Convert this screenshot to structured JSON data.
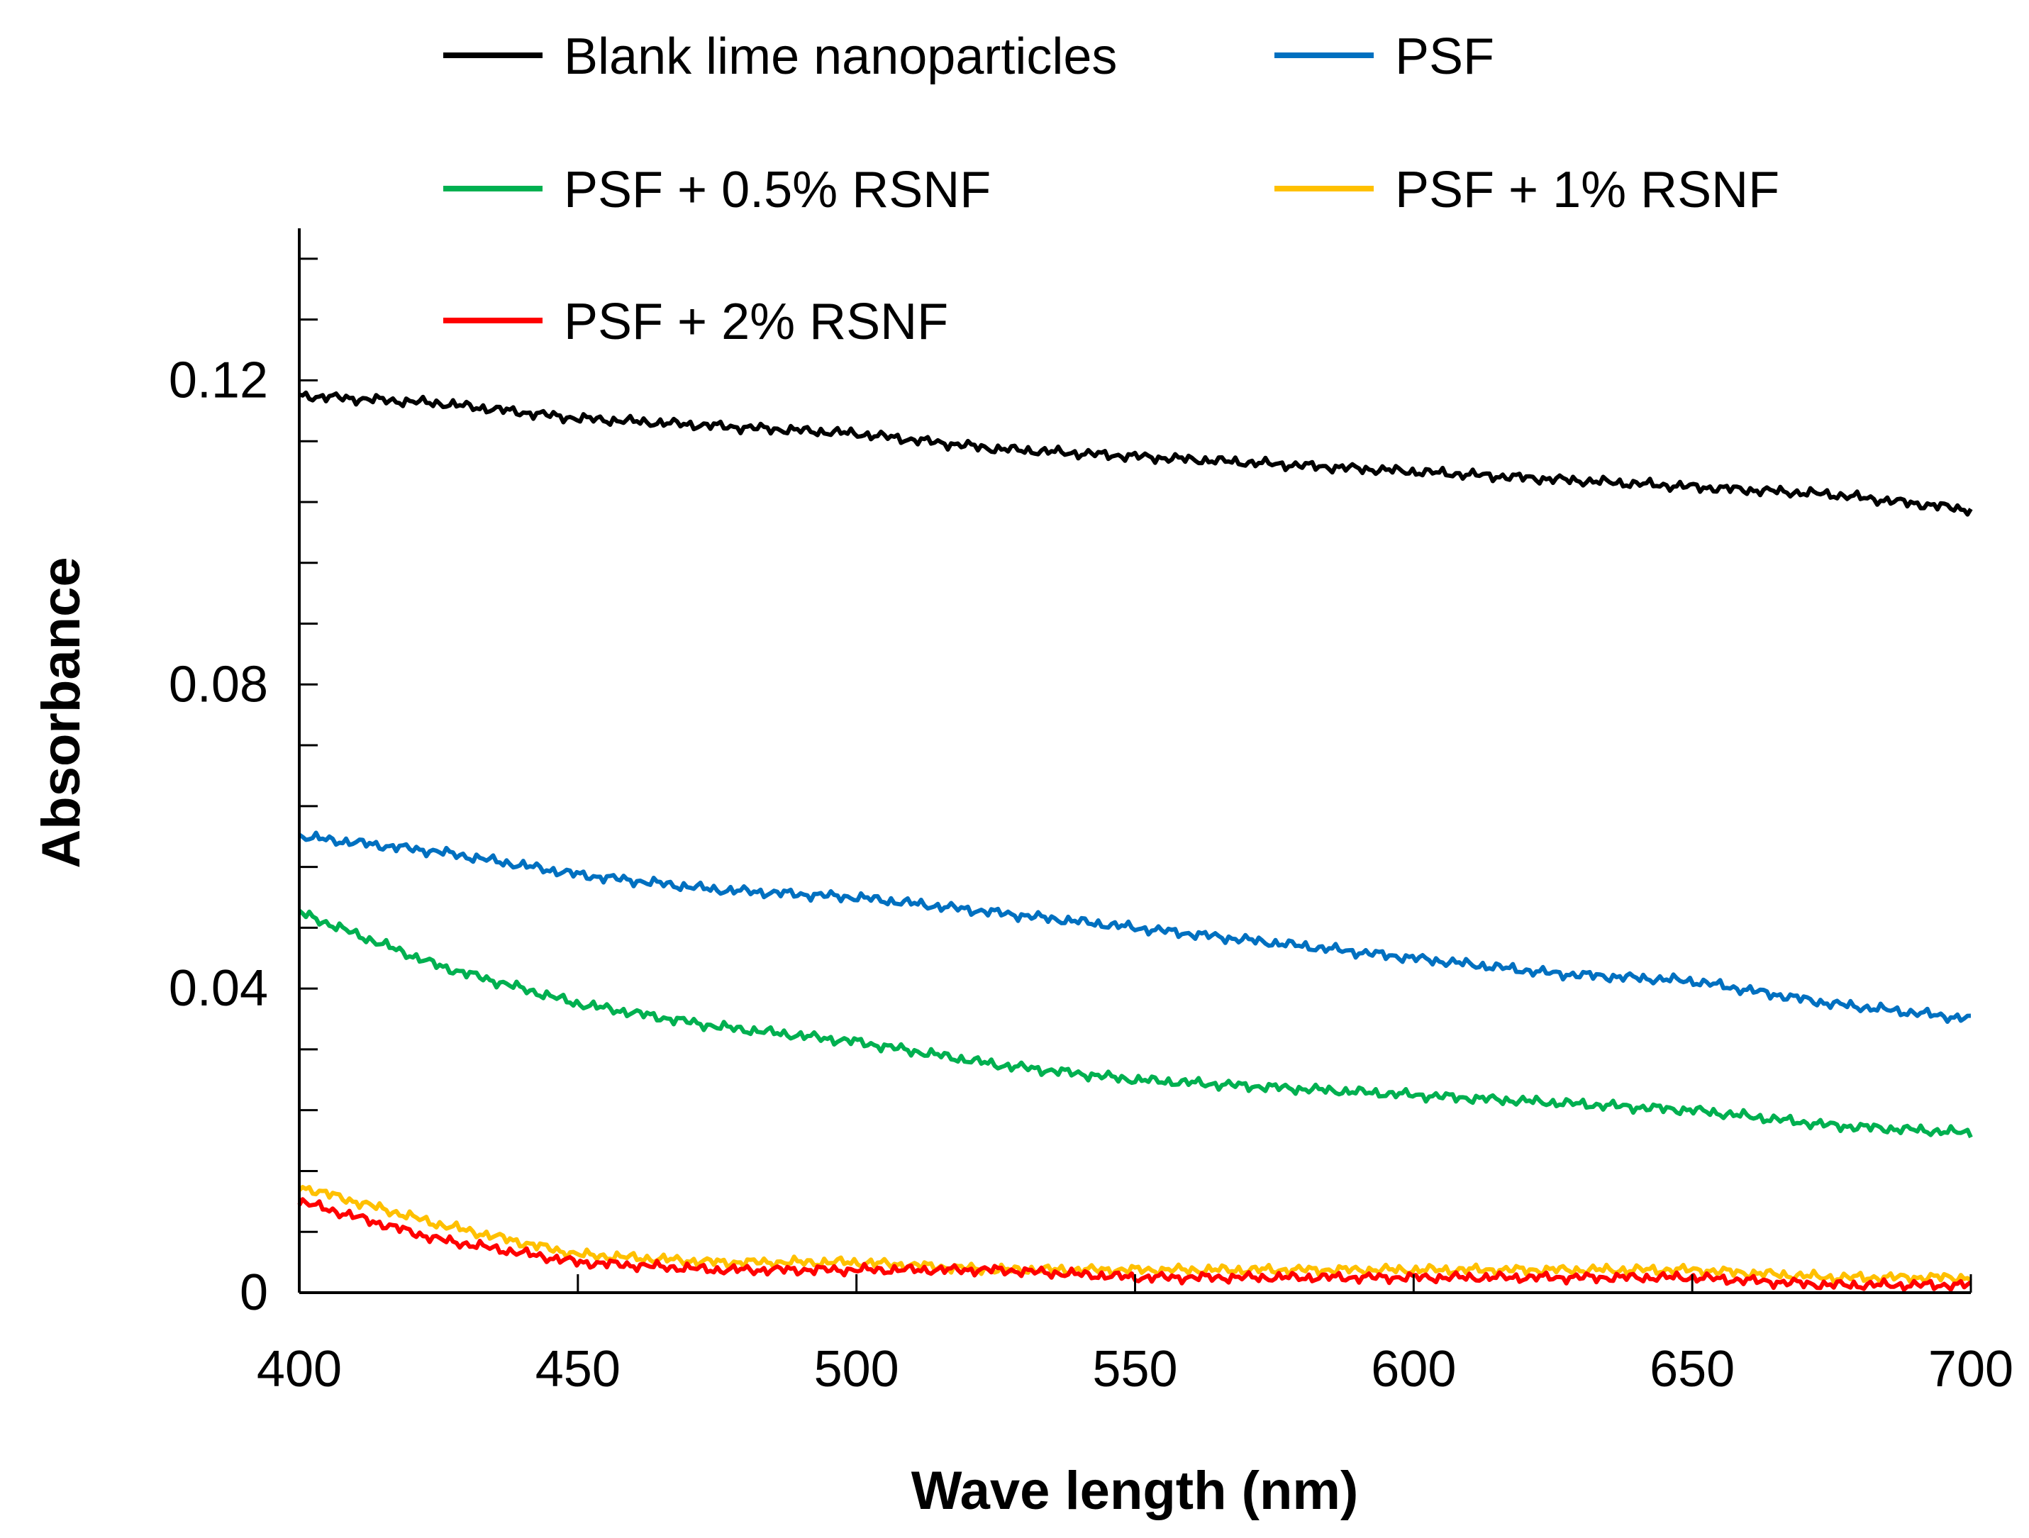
{
  "chart_data": {
    "type": "line",
    "title": "",
    "xlabel": "Wave length (nm)",
    "ylabel": "Absorbance",
    "xlim": [
      400,
      700
    ],
    "ylim": [
      0,
      0.14
    ],
    "x_ticks": [
      400,
      450,
      500,
      550,
      600,
      650,
      700
    ],
    "x_tick_labels": [
      "400",
      "450",
      "500",
      "550",
      "600",
      "650",
      "700"
    ],
    "y_major_ticks": [
      0,
      0.04,
      0.08,
      0.12
    ],
    "y_tick_labels": [
      "0",
      "0.04",
      "0.08",
      "0.12"
    ],
    "y_minor_ticks": [
      0.008,
      0.016,
      0.024,
      0.032,
      0.048,
      0.056,
      0.064,
      0.072,
      0.088,
      0.096,
      0.104,
      0.112,
      0.128,
      0.136
    ],
    "grid": false,
    "legend_position": "top",
    "x": [
      400,
      425,
      450,
      475,
      500,
      525,
      550,
      575,
      600,
      625,
      650,
      675,
      700
    ],
    "series": [
      {
        "name": "Blank lime nanoparticles",
        "color": "#000000",
        "values": [
          0.118,
          0.117,
          0.115,
          0.114,
          0.113,
          0.111,
          0.11,
          0.109,
          0.108,
          0.107,
          0.106,
          0.105,
          0.103
        ]
      },
      {
        "name": "PSF",
        "color": "#0070c0",
        "values": [
          0.06,
          0.058,
          0.055,
          0.053,
          0.052,
          0.05,
          0.048,
          0.046,
          0.044,
          0.042,
          0.041,
          0.038,
          0.036
        ]
      },
      {
        "name": "PSF + 0.5% RSNF",
        "color": "#00b050",
        "values": [
          0.05,
          0.043,
          0.038,
          0.035,
          0.033,
          0.03,
          0.028,
          0.027,
          0.026,
          0.025,
          0.024,
          0.022,
          0.021
        ]
      },
      {
        "name": "PSF + 1% RSNF",
        "color": "#ffc000",
        "values": [
          0.014,
          0.009,
          0.005,
          0.004,
          0.004,
          0.003,
          0.003,
          0.003,
          0.003,
          0.003,
          0.003,
          0.002,
          0.002
        ]
      },
      {
        "name": "PSF + 2% RSNF",
        "color": "#ff0000",
        "values": [
          0.012,
          0.007,
          0.004,
          0.003,
          0.003,
          0.003,
          0.002,
          0.002,
          0.002,
          0.002,
          0.002,
          0.001,
          0.001
        ]
      }
    ]
  }
}
